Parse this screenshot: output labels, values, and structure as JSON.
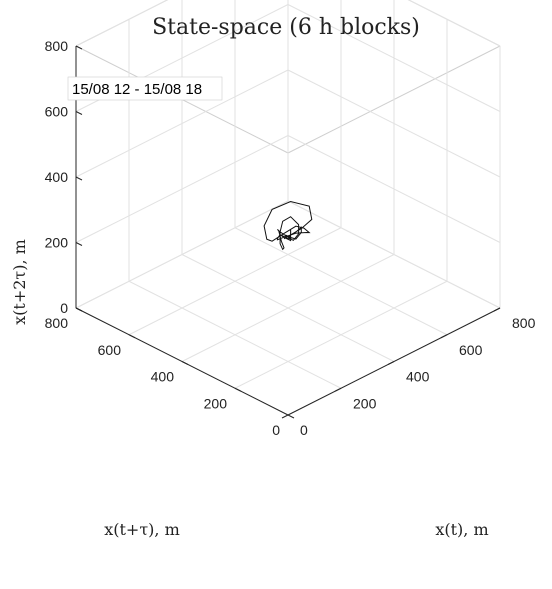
{
  "chart_data": {
    "type": "line",
    "projection": "3d",
    "title": "State-space (6 h blocks)",
    "annotation": "15/08 12 - 15/08 18",
    "xlabel": "x(t), m",
    "ylabel": "x(t+τ), m",
    "zlabel": "x(t+2τ), m",
    "xlim": [
      0,
      800
    ],
    "ylim": [
      0,
      800
    ],
    "zlim": [
      0,
      800
    ],
    "xticks": [
      "0",
      "200",
      "400",
      "600",
      "800"
    ],
    "yticks": [
      "0",
      "200",
      "400",
      "600",
      "800"
    ],
    "zticks": [
      "0",
      "200",
      "400",
      "600",
      "800"
    ],
    "grid": true,
    "series": [
      {
        "color": "#111111",
        "x": [
          300,
          330,
          360,
          380,
          350,
          310,
          270,
          250,
          240,
          255,
          280,
          300,
          330,
          350,
          340,
          310,
          280,
          260,
          255,
          265,
          290,
          300,
          310,
          320,
          315,
          300,
          285,
          280,
          290,
          305,
          300,
          295,
          300,
          310,
          320,
          330,
          340,
          330,
          310,
          290,
          270,
          260,
          250,
          245,
          255,
          270,
          290,
          310,
          330,
          340,
          335,
          320,
          300,
          290,
          295,
          305,
          300,
          310,
          300
        ],
        "y": [
          300,
          280,
          270,
          300,
          340,
          370,
          360,
          330,
          300,
          270,
          250,
          240,
          250,
          280,
          310,
          330,
          320,
          300,
          285,
          275,
          280,
          290,
          300,
          310,
          305,
          295,
          290,
          300,
          310,
          305,
          295,
          300,
          310,
          315,
          300,
          290,
          300,
          320,
          330,
          320,
          300,
          280,
          265,
          270,
          290,
          310,
          320,
          315,
          300,
          290,
          285,
          290,
          300,
          305,
          300,
          295,
          300,
          300,
          300
        ],
        "z": [
          300,
          320,
          340,
          360,
          370,
          350,
          320,
          300,
          310,
          340,
          360,
          350,
          320,
          300,
          290,
          280,
          290,
          310,
          330,
          320,
          300,
          290,
          300,
          310,
          300,
          295,
          305,
          310,
          300,
          295,
          300,
          305,
          300,
          290,
          280,
          300,
          320,
          340,
          330,
          310,
          290,
          285,
          300,
          320,
          340,
          330,
          310,
          290,
          280,
          300,
          320,
          310,
          300,
          295,
          300,
          305,
          300,
          300,
          300
        ]
      }
    ]
  }
}
